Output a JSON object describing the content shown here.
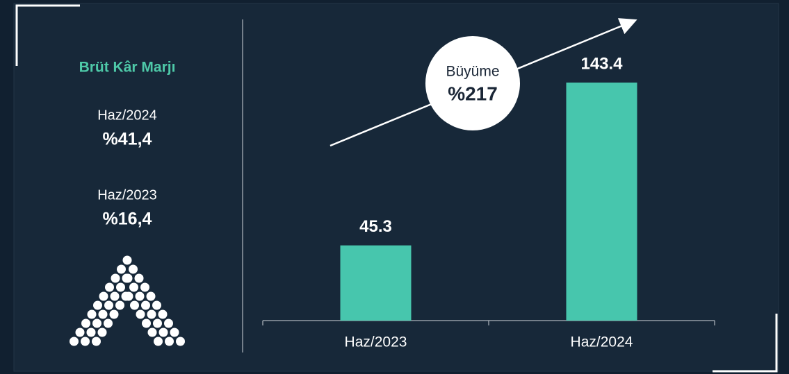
{
  "panel": {
    "title": "Brüt Kâr Marjı",
    "items": [
      {
        "label": "Haz/2024",
        "value": "%41,4"
      },
      {
        "label": "Haz/2023",
        "value": "%16,4"
      }
    ]
  },
  "chart_data": {
    "type": "bar",
    "categories": [
      "Haz/2023",
      "Haz/2024"
    ],
    "values": [
      45.3,
      143.4
    ],
    "color": "#47c6ad",
    "annotation": {
      "title": "Büyüme",
      "value": "%217"
    }
  }
}
